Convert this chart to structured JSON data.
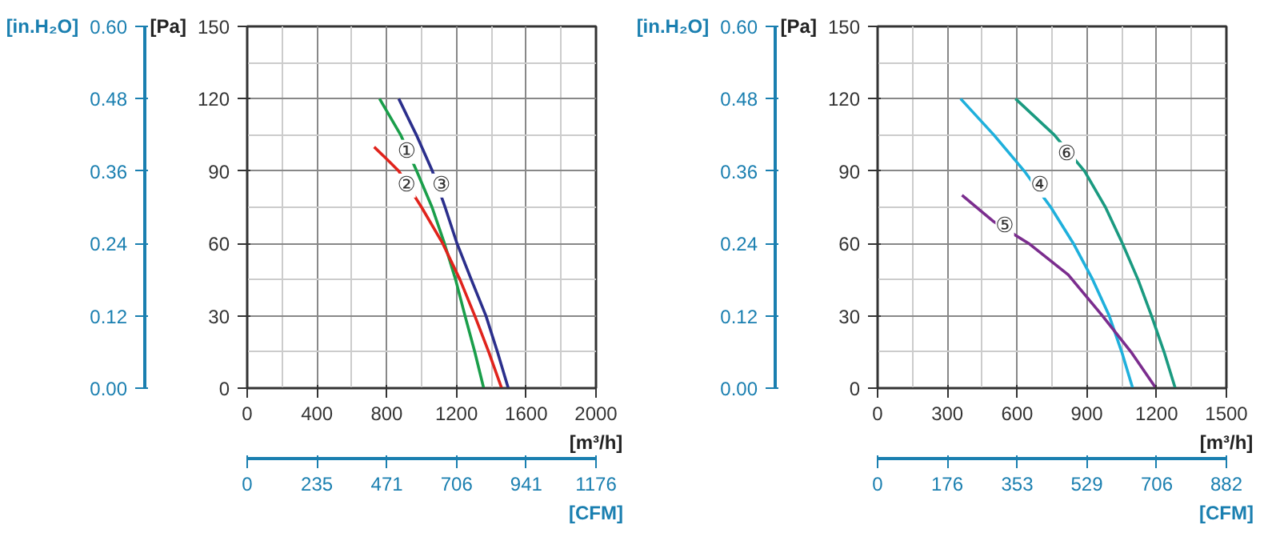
{
  "chart_data": [
    {
      "type": "line",
      "xlabel": "[m³/h]",
      "x2label": "[CFM]",
      "ylabel": "[Pa]",
      "y2label": "[in.H₂O]",
      "xlim": [
        0,
        2000
      ],
      "xticks": [
        0,
        400,
        800,
        1200,
        1600,
        2000
      ],
      "x2lim": [
        0,
        1176
      ],
      "x2ticks": [
        0,
        235,
        471,
        706,
        941,
        1176
      ],
      "ylim": [
        0,
        150
      ],
      "yticks": [
        0,
        30,
        60,
        90,
        120,
        150
      ],
      "y2lim": [
        0,
        0.6
      ],
      "y2ticks": [
        {
          "value": 0,
          "label": "0.00"
        },
        {
          "value": 0.12,
          "label": "0.12"
        },
        {
          "value": 0.24,
          "label": "0.24"
        },
        {
          "value": 0.36,
          "label": "0.36"
        },
        {
          "value": 0.48,
          "label": "0.48"
        },
        {
          "value": 0.6,
          "label": "0.60"
        }
      ],
      "grid": true,
      "marker": "none",
      "line_style": "solid",
      "series": [
        {
          "color": "#1a9e4a",
          "x": [
            759,
            880,
            972,
            1060,
            1131,
            1195,
            1249,
            1305,
            1356
          ],
          "values": [
            120,
            105,
            90,
            75,
            60,
            45,
            30,
            15,
            0
          ]
        },
        {
          "color": "#e0231c",
          "x": [
            728,
            800,
            869,
            1000,
            1121,
            1220,
            1305,
            1385,
            1459
          ],
          "values": [
            100,
            95,
            90,
            75,
            60,
            45,
            30,
            15,
            0
          ]
        },
        {
          "color": "#2b2f8c",
          "x": [
            869,
            970,
            1062,
            1135,
            1203,
            1285,
            1369,
            1435,
            1497
          ],
          "values": [
            120,
            105,
            90,
            75,
            60,
            45,
            30,
            15,
            0
          ]
        }
      ],
      "annotations": [
        {
          "text": "①",
          "x": 915,
          "y": 98
        },
        {
          "text": "②",
          "x": 913,
          "y": 84
        },
        {
          "text": "③",
          "x": 1113,
          "y": 84
        }
      ]
    },
    {
      "type": "line",
      "xlabel": "[m³/h]",
      "x2label": "[CFM]",
      "ylabel": "[Pa]",
      "y2label": "[in.H₂O]",
      "xlim": [
        0,
        1500
      ],
      "xticks": [
        0,
        300,
        600,
        900,
        1200,
        1500
      ],
      "x2lim": [
        0,
        882
      ],
      "x2ticks": [
        0,
        176,
        353,
        529,
        706,
        882
      ],
      "ylim": [
        0,
        150
      ],
      "yticks": [
        0,
        30,
        60,
        90,
        120,
        150
      ],
      "y2lim": [
        0,
        0.6
      ],
      "y2ticks": [
        {
          "value": 0,
          "label": "0.00"
        },
        {
          "value": 0.12,
          "label": "0.12"
        },
        {
          "value": 0.24,
          "label": "0.24"
        },
        {
          "value": 0.36,
          "label": "0.36"
        },
        {
          "value": 0.48,
          "label": "0.48"
        },
        {
          "value": 0.6,
          "label": "0.60"
        }
      ],
      "grid": true,
      "marker": "none",
      "line_style": "solid",
      "series": [
        {
          "color": "#1fb0dc",
          "x": [
            357,
            500,
            631,
            745,
            842,
            925,
            996,
            1050,
            1097
          ],
          "values": [
            120,
            105,
            90,
            75,
            60,
            45,
            30,
            15,
            0
          ]
        },
        {
          "color": "#7b2d8e",
          "x": [
            363,
            500,
            650,
            820,
            967,
            1090,
            1197
          ],
          "values": [
            80,
            69,
            60,
            47,
            30,
            15,
            0
          ]
        },
        {
          "color": "#1a9a80",
          "x": [
            593,
            760,
            890,
            980,
            1053,
            1120,
            1178,
            1232,
            1280
          ],
          "values": [
            120,
            105,
            90,
            75,
            60,
            45,
            30,
            15,
            0
          ]
        }
      ],
      "annotations": [
        {
          "text": "④",
          "x": 698,
          "y": 84
        },
        {
          "text": "⑤",
          "x": 547,
          "y": 67
        },
        {
          "text": "⑥",
          "x": 813,
          "y": 97
        }
      ]
    }
  ]
}
